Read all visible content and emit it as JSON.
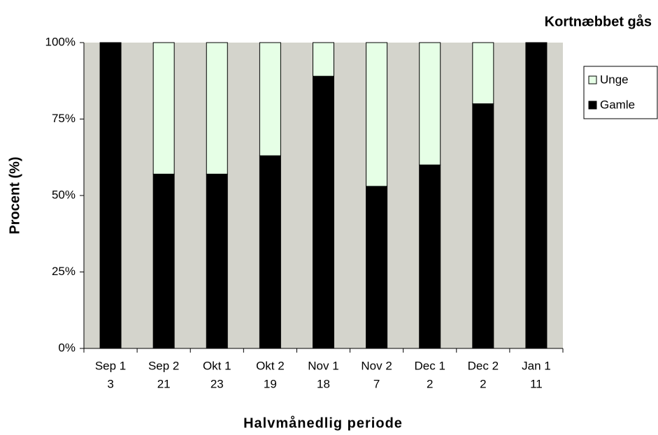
{
  "chart_data": {
    "type": "stacked_bar",
    "title": "Kortnæbbet gås",
    "x_label": "Halvmånedlig periode",
    "y_label": "Procent (%)",
    "categories": [
      "Sep 1",
      "Sep 2",
      "Okt 1",
      "Okt 2",
      "Nov 1",
      "Nov 2",
      "Dec 1",
      "Dec 2",
      "Jan 1"
    ],
    "sample_sizes": [
      3,
      21,
      23,
      19,
      18,
      7,
      2,
      2,
      11
    ],
    "series": [
      {
        "name": "Gamle",
        "color": "#000000",
        "values": [
          100,
          57,
          57,
          63,
          89,
          53,
          60,
          80,
          100
        ]
      },
      {
        "name": "Unge",
        "color": "#e6ffe6",
        "values": [
          0,
          43,
          43,
          37,
          11,
          47,
          40,
          20,
          0
        ]
      }
    ],
    "ylim": [
      0,
      100
    ],
    "yticks": [
      {
        "value": 0,
        "label": "0%"
      },
      {
        "value": 25,
        "label": "25%"
      },
      {
        "value": 50,
        "label": "50%"
      },
      {
        "value": 75,
        "label": "75%"
      },
      {
        "value": 100,
        "label": "100%"
      }
    ],
    "plot_background": "#d4d4cc",
    "legend": "right"
  }
}
